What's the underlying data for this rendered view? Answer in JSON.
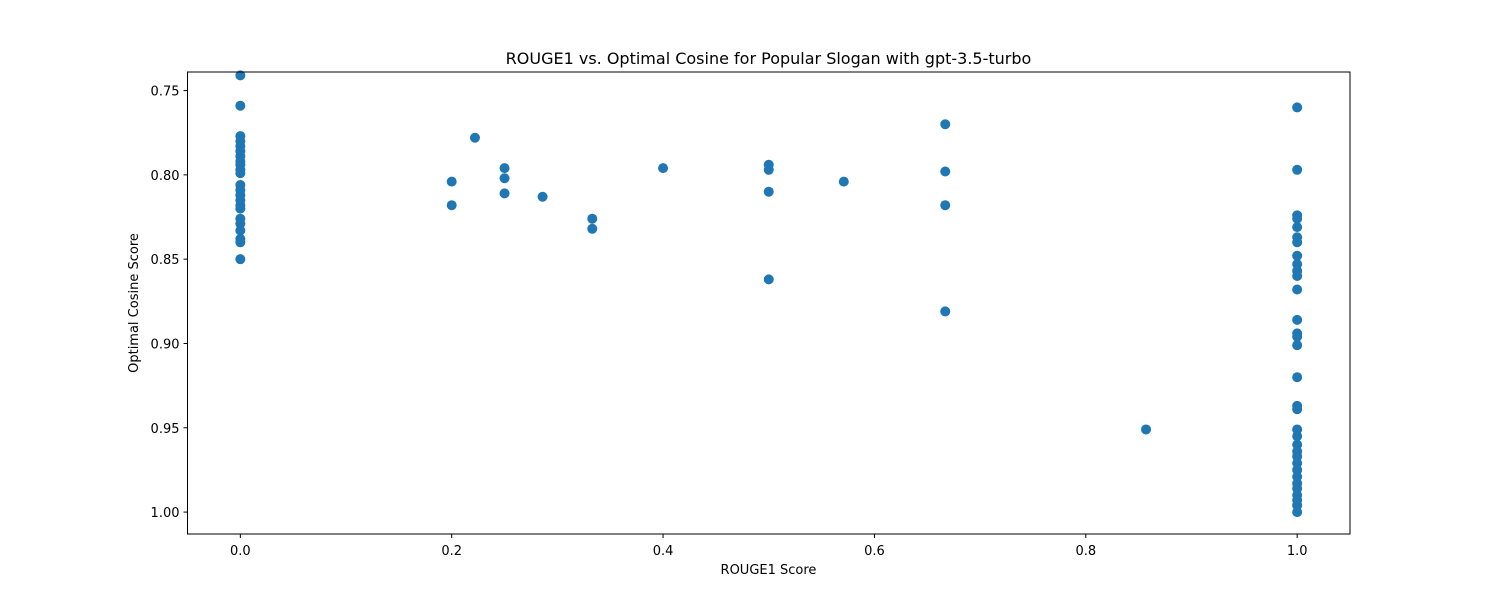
{
  "chart_data": {
    "type": "scatter",
    "title": "ROUGE1 vs. Optimal Cosine for Popular Slogan with gpt-3.5-turbo",
    "xlabel": "ROUGE1 Score",
    "ylabel": "Optimal Cosine Score",
    "xlim": [
      -0.05,
      1.05
    ],
    "ylim": [
      1.013,
      0.739
    ],
    "y_inverted": true,
    "grid": false,
    "color": "#1f77b4",
    "x_ticks": [
      0.0,
      0.2,
      0.4,
      0.6,
      0.8,
      1.0
    ],
    "x_tick_labels": [
      "0.0",
      "0.2",
      "0.4",
      "0.6",
      "0.8",
      "1.0"
    ],
    "y_ticks": [
      0.75,
      0.8,
      0.85,
      0.9,
      0.95,
      1.0
    ],
    "y_tick_labels": [
      "0.75",
      "0.80",
      "0.85",
      "0.90",
      "0.95",
      "1.00"
    ],
    "points": [
      {
        "x": 0.0,
        "y": 0.741
      },
      {
        "x": 0.0,
        "y": 0.759
      },
      {
        "x": 0.0,
        "y": 0.777
      },
      {
        "x": 0.0,
        "y": 0.78
      },
      {
        "x": 0.0,
        "y": 0.783
      },
      {
        "x": 0.0,
        "y": 0.786
      },
      {
        "x": 0.0,
        "y": 0.789
      },
      {
        "x": 0.0,
        "y": 0.792
      },
      {
        "x": 0.0,
        "y": 0.794
      },
      {
        "x": 0.0,
        "y": 0.797
      },
      {
        "x": 0.0,
        "y": 0.799
      },
      {
        "x": 0.0,
        "y": 0.806
      },
      {
        "x": 0.0,
        "y": 0.809
      },
      {
        "x": 0.0,
        "y": 0.812
      },
      {
        "x": 0.0,
        "y": 0.815
      },
      {
        "x": 0.0,
        "y": 0.818
      },
      {
        "x": 0.0,
        "y": 0.82
      },
      {
        "x": 0.0,
        "y": 0.826
      },
      {
        "x": 0.0,
        "y": 0.829
      },
      {
        "x": 0.0,
        "y": 0.833
      },
      {
        "x": 0.0,
        "y": 0.838
      },
      {
        "x": 0.0,
        "y": 0.84
      },
      {
        "x": 0.0,
        "y": 0.85
      },
      {
        "x": 0.2,
        "y": 0.804
      },
      {
        "x": 0.2,
        "y": 0.818
      },
      {
        "x": 0.222,
        "y": 0.778
      },
      {
        "x": 0.25,
        "y": 0.796
      },
      {
        "x": 0.25,
        "y": 0.802
      },
      {
        "x": 0.25,
        "y": 0.811
      },
      {
        "x": 0.286,
        "y": 0.813
      },
      {
        "x": 0.333,
        "y": 0.826
      },
      {
        "x": 0.333,
        "y": 0.832
      },
      {
        "x": 0.4,
        "y": 0.796
      },
      {
        "x": 0.5,
        "y": 0.794
      },
      {
        "x": 0.5,
        "y": 0.797
      },
      {
        "x": 0.5,
        "y": 0.81
      },
      {
        "x": 0.5,
        "y": 0.862
      },
      {
        "x": 0.571,
        "y": 0.804
      },
      {
        "x": 0.667,
        "y": 0.77
      },
      {
        "x": 0.667,
        "y": 0.798
      },
      {
        "x": 0.667,
        "y": 0.818
      },
      {
        "x": 0.667,
        "y": 0.881
      },
      {
        "x": 0.857,
        "y": 0.951
      },
      {
        "x": 1.0,
        "y": 0.76
      },
      {
        "x": 1.0,
        "y": 0.797
      },
      {
        "x": 1.0,
        "y": 0.824
      },
      {
        "x": 1.0,
        "y": 0.826
      },
      {
        "x": 1.0,
        "y": 0.831
      },
      {
        "x": 1.0,
        "y": 0.837
      },
      {
        "x": 1.0,
        "y": 0.84
      },
      {
        "x": 1.0,
        "y": 0.848
      },
      {
        "x": 1.0,
        "y": 0.853
      },
      {
        "x": 1.0,
        "y": 0.857
      },
      {
        "x": 1.0,
        "y": 0.86
      },
      {
        "x": 1.0,
        "y": 0.868
      },
      {
        "x": 1.0,
        "y": 0.886
      },
      {
        "x": 1.0,
        "y": 0.894
      },
      {
        "x": 1.0,
        "y": 0.896
      },
      {
        "x": 1.0,
        "y": 0.901
      },
      {
        "x": 1.0,
        "y": 0.92
      },
      {
        "x": 1.0,
        "y": 0.937
      },
      {
        "x": 1.0,
        "y": 0.939
      },
      {
        "x": 1.0,
        "y": 0.951
      },
      {
        "x": 1.0,
        "y": 0.955
      },
      {
        "x": 1.0,
        "y": 0.96
      },
      {
        "x": 1.0,
        "y": 0.964
      },
      {
        "x": 1.0,
        "y": 0.967
      },
      {
        "x": 1.0,
        "y": 0.971
      },
      {
        "x": 1.0,
        "y": 0.975
      },
      {
        "x": 1.0,
        "y": 0.979
      },
      {
        "x": 1.0,
        "y": 0.983
      },
      {
        "x": 1.0,
        "y": 0.986
      },
      {
        "x": 1.0,
        "y": 0.99
      },
      {
        "x": 1.0,
        "y": 0.993
      },
      {
        "x": 1.0,
        "y": 0.996
      },
      {
        "x": 1.0,
        "y": 1.0
      }
    ]
  }
}
